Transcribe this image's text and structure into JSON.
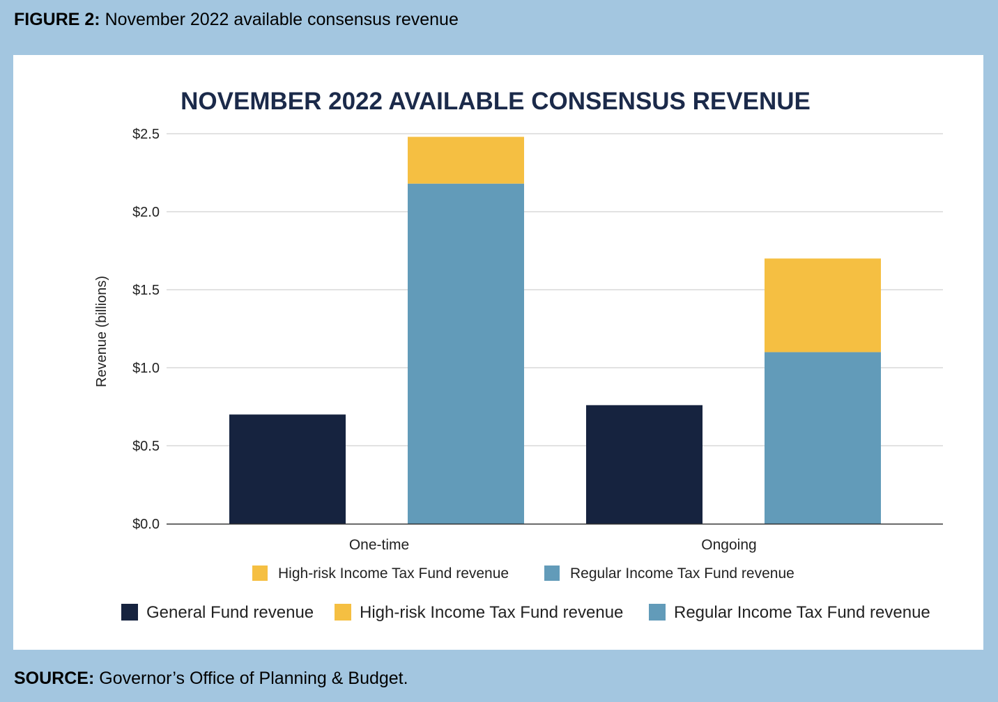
{
  "figure": {
    "label": "FIGURE 2:",
    "caption": "November 2022 available consensus revenue"
  },
  "source": {
    "label": "SOURCE:",
    "text": "Governor’s Office of Planning & Budget."
  },
  "colors": {
    "general_fund": "#16233f",
    "high_risk": "#f5bf42",
    "regular": "#629bb9",
    "grid": "#d0d0d0",
    "axis": "#333333"
  },
  "chart_data": {
    "type": "bar",
    "stacked": true,
    "title": "NOVEMBER 2022 AVAILABLE CONSENSUS REVENUE",
    "ylabel": "Revenue (billions)",
    "xlabel": "",
    "ylim": [
      0,
      2.5
    ],
    "yticks": [
      "$0.0",
      "$0.5",
      "$1.0",
      "$1.5",
      "$2.0",
      "$2.5"
    ],
    "ytick_values": [
      0,
      0.5,
      1.0,
      1.5,
      2.0,
      2.5
    ],
    "grid": true,
    "categories": [
      "One-time",
      "Ongoing"
    ],
    "bars": [
      {
        "category": "One-time",
        "stack": "General Fund",
        "segments": [
          {
            "series": "General Fund revenue",
            "value": 0.7
          }
        ]
      },
      {
        "category": "One-time",
        "stack": "Income Tax Fund",
        "segments": [
          {
            "series": "Regular Income Tax Fund revenue",
            "value": 2.18
          },
          {
            "series": "High-risk Income Tax Fund revenue",
            "value": 0.3
          }
        ]
      },
      {
        "category": "Ongoing",
        "stack": "General Fund",
        "segments": [
          {
            "series": "General Fund revenue",
            "value": 0.76
          }
        ]
      },
      {
        "category": "Ongoing",
        "stack": "Income Tax Fund",
        "segments": [
          {
            "series": "Regular Income Tax Fund revenue",
            "value": 1.1
          },
          {
            "series": "High-risk Income Tax Fund revenue",
            "value": 0.6
          }
        ]
      }
    ],
    "legend_inner": [
      "High-risk Income Tax Fund revenue",
      "Regular Income Tax Fund revenue"
    ],
    "legend_outer": [
      "General Fund revenue",
      "High-risk Income Tax Fund revenue",
      "Regular Income Tax Fund revenue"
    ],
    "legend_placement": "bottom"
  }
}
